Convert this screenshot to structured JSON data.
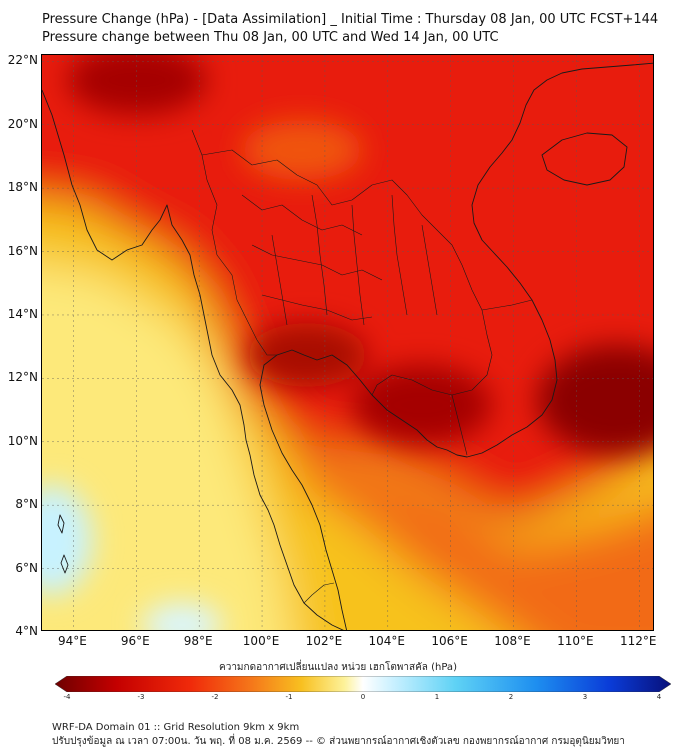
{
  "header": {
    "title_line1": "Pressure Change (hPa) - [Data Assimilation] _ Initial Time : Thursday 08 Jan, 00 UTC FCST+144",
    "title_line2": "Pressure change between Thu 08 Jan, 00 UTC and Wed 14 Jan, 00 UTC"
  },
  "map": {
    "lat_labels": [
      "22°N",
      "20°N",
      "18°N",
      "16°N",
      "14°N",
      "12°N",
      "10°N",
      "8°N",
      "6°N",
      "4°N"
    ],
    "lon_labels": [
      "94°E",
      "96°E",
      "98°E",
      "100°E",
      "102°E",
      "104°E",
      "106°E",
      "108°E",
      "110°E",
      "112°E"
    ],
    "lat_range": [
      4,
      22.2
    ],
    "lon_range": [
      93,
      112.5
    ],
    "fill_colors": {
      "strong_fall": "#8b0000",
      "fall": "#e81e0a",
      "moderate": "#f26a14",
      "weak": "#f7c21e",
      "near_zero": "#fde97a",
      "rise": "#c8f2ff"
    }
  },
  "colorbar": {
    "title": "ความกดอากาศเปลี่ยนแปลง หน่วย เฮกโตพาสคัล (hPa)",
    "ticks": [
      "-4",
      "-3",
      "-2",
      "-1",
      "0",
      "1",
      "2",
      "3",
      "4"
    ],
    "range": [
      -4,
      4
    ]
  },
  "footer": {
    "line1": "WRF-DA Domain 01 :: Grid Resolution 9km x 9km",
    "line2": "ปรับปรุงข้อมูล ณ เวลา 07:00น. วัน พฤ. ที่ 08 ม.ค. 2569 -- © ส่วนพยากรณ์อากาศเชิงตัวเลข กองพยากรณ์อากาศ กรมอุตุนิยมวิทยา"
  }
}
